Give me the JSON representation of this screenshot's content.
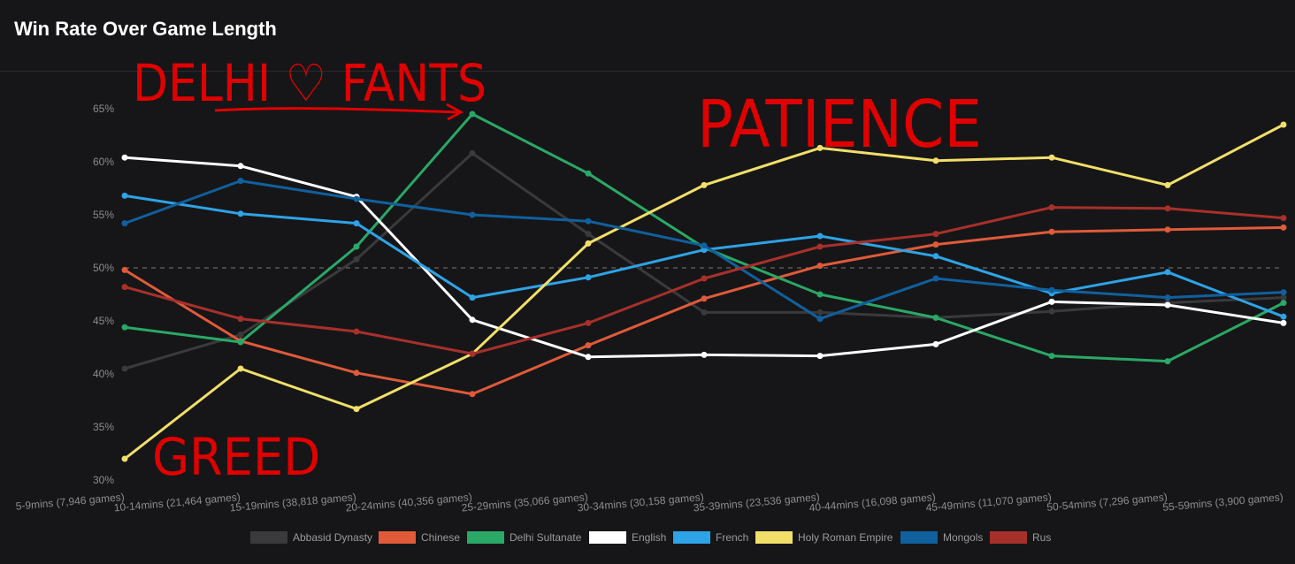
{
  "header": {
    "title": "Win Rate Over Game Length"
  },
  "annotations": {
    "top_left": "DELHI ♡ FANTS",
    "top_right": "PATIENCE",
    "bottom_left": "GREED"
  },
  "chart_data": {
    "type": "line",
    "title": "Win Rate Over Game Length",
    "xlabel": "",
    "ylabel": "",
    "ylim": [
      30,
      65
    ],
    "y_ticks": [
      "30%",
      "35%",
      "40%",
      "45%",
      "50%",
      "55%",
      "60%",
      "65%"
    ],
    "reference_line": 50,
    "grid": false,
    "legend_position": "bottom",
    "categories": [
      "5-9mins (7,946 games)",
      "10-14mins (21,464 games)",
      "15-19mins (38,818 games)",
      "20-24mins (40,356 games)",
      "25-29mins (35,066 games)",
      "30-34mins (30,158 games)",
      "35-39mins (23,536 games)",
      "40-44mins (16,098 games)",
      "45-49mins (11,070 games)",
      "50-54mins (7,296 games)",
      "55-59mins (3,900 games)"
    ],
    "series": [
      {
        "name": "Abbasid Dynasty",
        "color": "#3a3a3c",
        "values": [
          40.5,
          43.7,
          50.8,
          60.8,
          53.2,
          45.8,
          45.8,
          45.3,
          45.9,
          46.7,
          47.2
        ]
      },
      {
        "name": "Chinese",
        "color": "#e05a3a",
        "values": [
          49.8,
          43.1,
          40.1,
          38.1,
          42.7,
          47.1,
          50.2,
          52.2,
          53.4,
          53.6,
          53.8
        ]
      },
      {
        "name": "Delhi Sultanate",
        "color": "#2aa866",
        "values": [
          44.4,
          43.0,
          52.0,
          64.5,
          58.9,
          51.9,
          47.5,
          45.3,
          41.7,
          41.2,
          46.7
        ]
      },
      {
        "name": "English",
        "color": "#ffffff",
        "values": [
          60.4,
          59.6,
          56.7,
          45.1,
          41.6,
          41.8,
          41.7,
          42.8,
          46.8,
          46.5,
          44.8
        ]
      },
      {
        "name": "French",
        "color": "#2ea3e6",
        "values": [
          56.8,
          55.1,
          54.2,
          47.2,
          49.1,
          51.7,
          53.0,
          51.1,
          47.6,
          49.6,
          45.4
        ]
      },
      {
        "name": "Holy Roman Empire",
        "color": "#f1df6a",
        "values": [
          32.0,
          40.5,
          36.7,
          41.9,
          52.3,
          57.8,
          61.3,
          60.1,
          60.4,
          57.8,
          63.5
        ]
      },
      {
        "name": "Mongols",
        "color": "#10609e",
        "values": [
          54.2,
          58.2,
          56.5,
          55.0,
          54.4,
          52.1,
          45.2,
          49.0,
          47.9,
          47.2,
          47.7
        ]
      },
      {
        "name": "Rus",
        "color": "#a8302a",
        "values": [
          48.2,
          45.2,
          44.0,
          41.9,
          44.8,
          49.0,
          52.0,
          53.2,
          55.7,
          55.6,
          54.7
        ]
      }
    ]
  }
}
